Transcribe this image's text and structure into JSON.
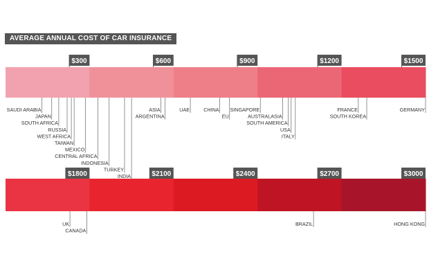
{
  "chart_data": {
    "type": "bar",
    "title": "AVERAGE ANNUAL COST OF CAR INSURANCE",
    "scale_bands": [
      {
        "tick_labels": [
          "$300",
          "$600",
          "$900",
          "$1200",
          "$1500"
        ],
        "range": [
          0,
          1500
        ],
        "colors": [
          "#f2a2ae",
          "#f09199",
          "#ee7f89",
          "#ec6776",
          "#ea4d5f"
        ]
      },
      {
        "tick_labels": [
          "$1800",
          "$2100",
          "$2400",
          "$2700",
          "$3000"
        ],
        "range": [
          1500,
          3000
        ],
        "colors": [
          "#ea3444",
          "#e8252e",
          "#dc1a22",
          "#bf1423",
          "#a8152a"
        ]
      }
    ],
    "countries": [
      {
        "name": "SAUDI ARABIA",
        "value": 130
      },
      {
        "name": "JAPAN",
        "value": 165
      },
      {
        "name": "SOUTH AFRICA",
        "value": 190
      },
      {
        "name": "RUSSIA",
        "value": 220
      },
      {
        "name": "WEST AFRICA",
        "value": 235
      },
      {
        "name": "TAIWAN",
        "value": 245
      },
      {
        "name": "MEXICO",
        "value": 285
      },
      {
        "name": "CENTRAL AFRICA",
        "value": 330
      },
      {
        "name": "INDONESIA",
        "value": 370
      },
      {
        "name": "TURKEY",
        "value": 425
      },
      {
        "name": "INDIA",
        "value": 450
      },
      {
        "name": "ASIA",
        "value": 555
      },
      {
        "name": "ARGENTINA",
        "value": 570
      },
      {
        "name": "UAE",
        "value": 660
      },
      {
        "name": "CHINA",
        "value": 765
      },
      {
        "name": "EU",
        "value": 800
      },
      {
        "name": "SINGAPORE",
        "value": 910
      },
      {
        "name": "AUSTRALASIA",
        "value": 990
      },
      {
        "name": "SOUTH AMERICA",
        "value": 1010
      },
      {
        "name": "USA",
        "value": 1020
      },
      {
        "name": "ITALY",
        "value": 1035
      },
      {
        "name": "FRANCE",
        "value": 1260
      },
      {
        "name": "SOUTH KOREA",
        "value": 1290
      },
      {
        "name": "GERMANY",
        "value": 1500
      },
      {
        "name": "UK",
        "value": 1730
      },
      {
        "name": "CANADA",
        "value": 1790
      },
      {
        "name": "BRAZIL",
        "value": 2600
      },
      {
        "name": "HONG KONG",
        "value": 3000
      }
    ]
  }
}
